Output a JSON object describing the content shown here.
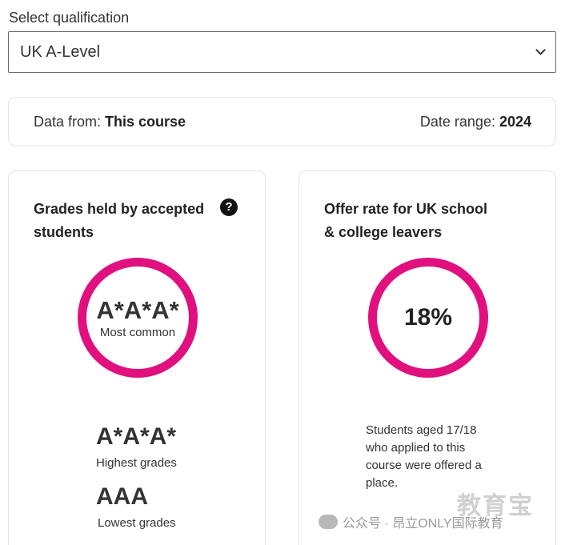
{
  "qualification": {
    "label": "Select qualification",
    "selected": "UK A-Level"
  },
  "info_bar": {
    "data_from_label": "Data from:",
    "data_from_value": "This course",
    "date_range_label": "Date range:",
    "date_range_value": "2024"
  },
  "grades_card": {
    "title": "Grades held by accepted students",
    "help_icon": "question-circle-icon",
    "most_common_value": "A*A*A*",
    "most_common_label": "Most common",
    "highest_value": "A*A*A*",
    "highest_label": "Highest grades",
    "lowest_value": "AAA",
    "lowest_label": "Lowest grades",
    "ring_color": "#e0107f"
  },
  "offer_card": {
    "title": "Offer rate for UK school & college leavers",
    "offer_rate": "18%",
    "description": "Students aged 17/18 who applied to this course were offered a place."
  },
  "watermark": {
    "text": "公众号 · 昂立ONLY国际教育",
    "logo": "教育宝"
  }
}
